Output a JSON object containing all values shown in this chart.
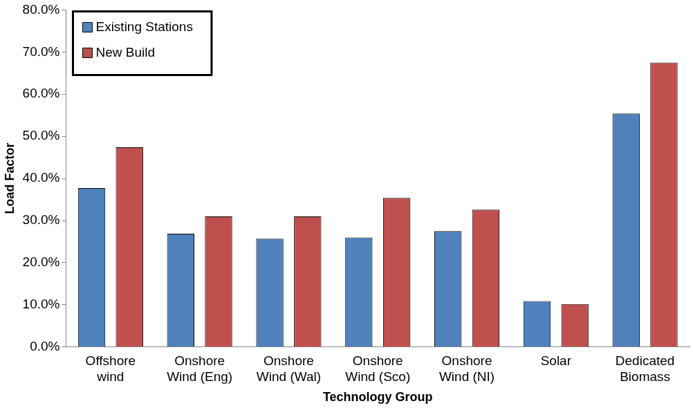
{
  "chart_data": {
    "type": "bar",
    "xlabel": "Technology Group",
    "ylabel": "Load Factor",
    "categories": [
      "Offshore\nwind",
      "Onshore\nWind (Eng)",
      "Onshore\nWind (Wal)",
      "Onshore\nWind (Sco)",
      "Onshore\nWind (NI)",
      "Solar",
      "Dedicated\nBiomass"
    ],
    "series": [
      {
        "name": "Existing Stations",
        "color": "#4f81bd",
        "values": [
          37.7,
          26.9,
          25.7,
          26.0,
          27.5,
          10.9,
          55.4
        ]
      },
      {
        "name": "New Build",
        "color": "#c0504d",
        "values": [
          47.4,
          31.0,
          31.0,
          35.4,
          32.6,
          10.2,
          67.5
        ]
      }
    ],
    "ylim": [
      0,
      80
    ],
    "yticks": [
      {
        "value": 0,
        "label": "0.0%"
      },
      {
        "value": 10,
        "label": "10.0%"
      },
      {
        "value": 20,
        "label": "20.0%"
      },
      {
        "value": 30,
        "label": "30.0%"
      },
      {
        "value": 40,
        "label": "40.0%"
      },
      {
        "value": 50,
        "label": "50.0%"
      },
      {
        "value": 60,
        "label": "60.0%"
      },
      {
        "value": 70,
        "label": "70.0%"
      },
      {
        "value": 80,
        "label": "80.0%"
      }
    ],
    "grid": false,
    "legend": "top left"
  }
}
